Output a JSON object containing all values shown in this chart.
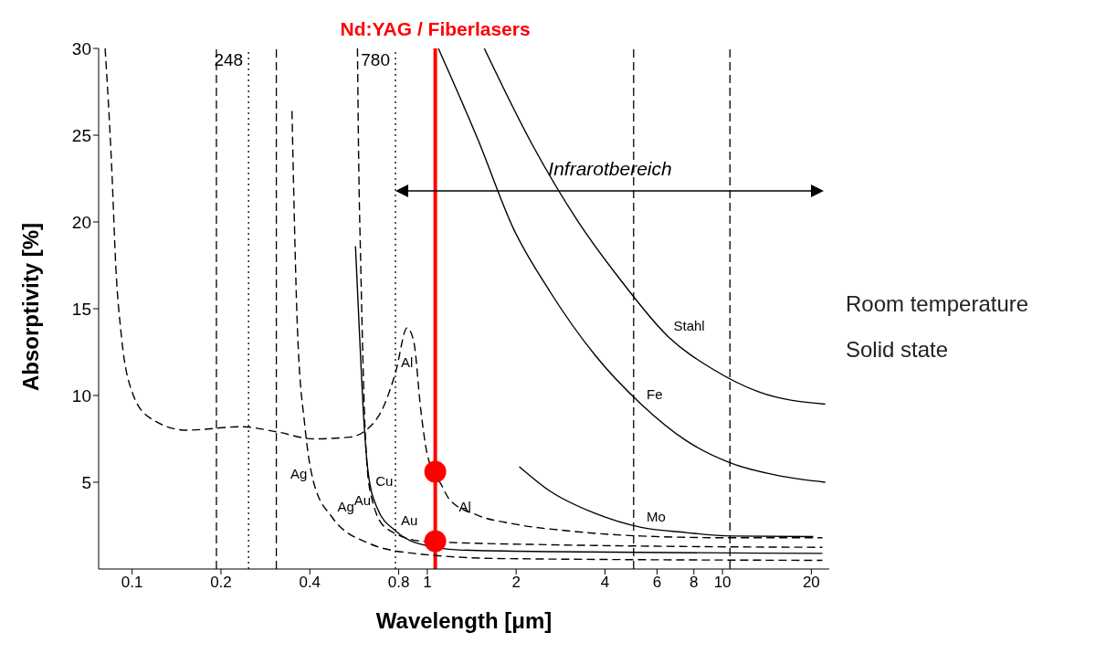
{
  "chart_data": {
    "type": "line",
    "xlabel": "Wavelength [μm]",
    "ylabel": "Absorptivity [%]",
    "log": "x",
    "xlim": [
      0.077,
      23
    ],
    "xticks": [
      0.1,
      0.2,
      0.4,
      0.8,
      1,
      2,
      4,
      6,
      8,
      10,
      20
    ],
    "ylim": [
      0,
      30
    ],
    "yticks": [
      5,
      10,
      15,
      20,
      25,
      30
    ],
    "series": [
      {
        "name": "Al",
        "color": "#000000",
        "line_style": "dashed",
        "x": [
          0.081,
          0.0855,
          0.088,
          0.092,
          0.1,
          0.115,
          0.153,
          0.234,
          0.31,
          0.412,
          0.547,
          0.677,
          0.78,
          0.855,
          0.9,
          0.95,
          1.0,
          1.12,
          1.19,
          1.48,
          1.96,
          3.0,
          5.3,
          10.7,
          21.8
        ],
        "values": [
          30,
          22.7,
          17.5,
          13.4,
          10.2,
          8.7,
          8.0,
          8.2,
          7.9,
          7.5,
          7.6,
          8.7,
          11.3,
          13.9,
          13.1,
          9.2,
          6.6,
          4.8,
          4.0,
          3.1,
          2.6,
          2.2,
          1.9,
          1.8,
          1.8
        ]
      },
      {
        "name": "Ag",
        "color": "#000000",
        "line_style": "dashed",
        "x": [
          0.348,
          0.363,
          0.385,
          0.412,
          0.475,
          0.63,
          0.9,
          1.82,
          21.8
        ],
        "values": [
          26.4,
          13.9,
          8.2,
          5.0,
          3.0,
          1.5,
          0.9,
          0.6,
          0.5
        ]
      },
      {
        "name": "Au",
        "color": "#000000",
        "line_style": "solid",
        "x": [
          0.571,
          0.588,
          0.609,
          0.63,
          0.677,
          0.78,
          0.965,
          1.28,
          2.6,
          21.8
        ],
        "values": [
          18.6,
          13.9,
          8.7,
          5.6,
          3.5,
          2.2,
          1.4,
          1.1,
          1.0,
          0.9
        ]
      },
      {
        "name": "Cu",
        "color": "#000000",
        "line_style": "dashed",
        "x": [
          0.58,
          0.585,
          0.595,
          0.615,
          0.64,
          0.72,
          0.97,
          2.6,
          21.8
        ],
        "values": [
          30,
          24,
          17.5,
          8.2,
          4.5,
          2.4,
          1.6,
          1.4,
          1.25
        ]
      },
      {
        "name": "Mo",
        "color": "#000000",
        "line_style": "solid",
        "x": [
          2.05,
          2.6,
          3.71,
          5.3,
          7.53,
          10.7,
          20.3
        ],
        "values": [
          5.9,
          4.5,
          3.2,
          2.4,
          2.1,
          1.9,
          1.87
        ]
      },
      {
        "name": "Fe",
        "color": "#000000",
        "line_style": "solid",
        "x": [
          1.09,
          1.48,
          1.96,
          2.6,
          3.71,
          5.3,
          7.53,
          10.7,
          15.3,
          22.3
        ],
        "values": [
          30,
          24.8,
          19.6,
          16.0,
          12.3,
          9.5,
          7.4,
          6.1,
          5.4,
          5.0
        ]
      },
      {
        "name": "Stahl",
        "color": "#000000",
        "line_style": "solid",
        "x": [
          1.56,
          2.26,
          3.22,
          4.59,
          6.54,
          9.31,
          13.3,
          22.3
        ],
        "values": [
          30,
          24.5,
          20.1,
          16.5,
          13.4,
          11.5,
          10.2,
          9.5
        ]
      },
      {
        "type": "scatter",
        "color": "#ff0000",
        "x": [
          1.064,
          1.064
        ],
        "values": [
          5.6,
          1.6
        ]
      }
    ],
    "ref_lines": [
      {
        "axis": "x",
        "value": 1.064,
        "label": "Nd:YAG / Fiberlasers",
        "color": "#ff0000",
        "line_style": "solid"
      },
      {
        "axis": "x",
        "value": 0.193,
        "label": null,
        "line_style": "dashed"
      },
      {
        "axis": "x",
        "value": 0.248,
        "label": "248",
        "line_style": "dotted"
      },
      {
        "axis": "x",
        "value": 0.308,
        "label": null,
        "line_style": "dashed"
      },
      {
        "axis": "x",
        "value": 0.78,
        "label": "780",
        "line_style": "dotted"
      },
      {
        "axis": "x",
        "value": 5,
        "label": null,
        "line_style": "dashed"
      },
      {
        "axis": "x",
        "value": 10.6,
        "label": null,
        "line_style": "dashed"
      }
    ],
    "annotations": [
      {
        "text": "Al",
        "x": 1.48,
        "y": 3.1
      },
      {
        "text": "Ag",
        "x": 0.412,
        "y": 5.0
      },
      {
        "text": "Au",
        "x": 0.677,
        "y": 3.5
      },
      "Infrarotbereich",
      "Room temperature",
      "Solid state"
    ]
  }
}
